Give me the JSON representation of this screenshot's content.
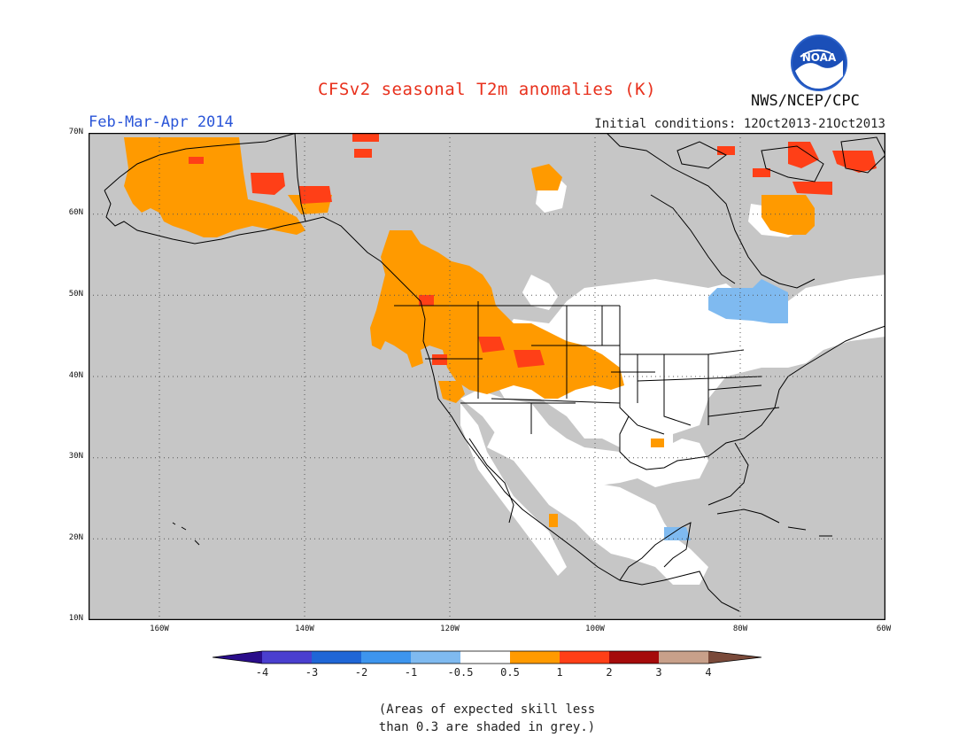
{
  "title": "CFSv2 seasonal T2m anomalies (K)",
  "season": "Feb-Mar-Apr 2014",
  "initial_conditions": "Initial conditions: 12Oct2013-21Oct2013",
  "agency": "NWS/NCEP/CPC",
  "logo_text": "NOAA",
  "lat_labels": [
    "70N",
    "60N",
    "50N",
    "40N",
    "30N",
    "20N",
    "10N"
  ],
  "lon_labels": [
    "160W",
    "140W",
    "120W",
    "100W",
    "80W",
    "60W"
  ],
  "colorbar": {
    "labels": [
      "-4",
      "-3",
      "-2",
      "-1",
      "-0.5",
      "0.5",
      "1",
      "2",
      "3",
      "4"
    ],
    "colors": [
      "#2a0d8a",
      "#4a3fcf",
      "#1f66d6",
      "#3d95ee",
      "#7fbaf0",
      "#ffffff",
      "#ff9a00",
      "#ff3f17",
      "#a50b0b",
      "#c8a08a",
      "#7a4a3a"
    ]
  },
  "colors": {
    "grey_skill": "#c6c6c6",
    "orange": "#ff9a00",
    "red": "#ff3f17",
    "light_blue": "#7fbaf0",
    "white": "#ffffff"
  },
  "note_line1": "(Areas of expected skill less",
  "note_line2": "than 0.3 are shaded in grey.)"
}
